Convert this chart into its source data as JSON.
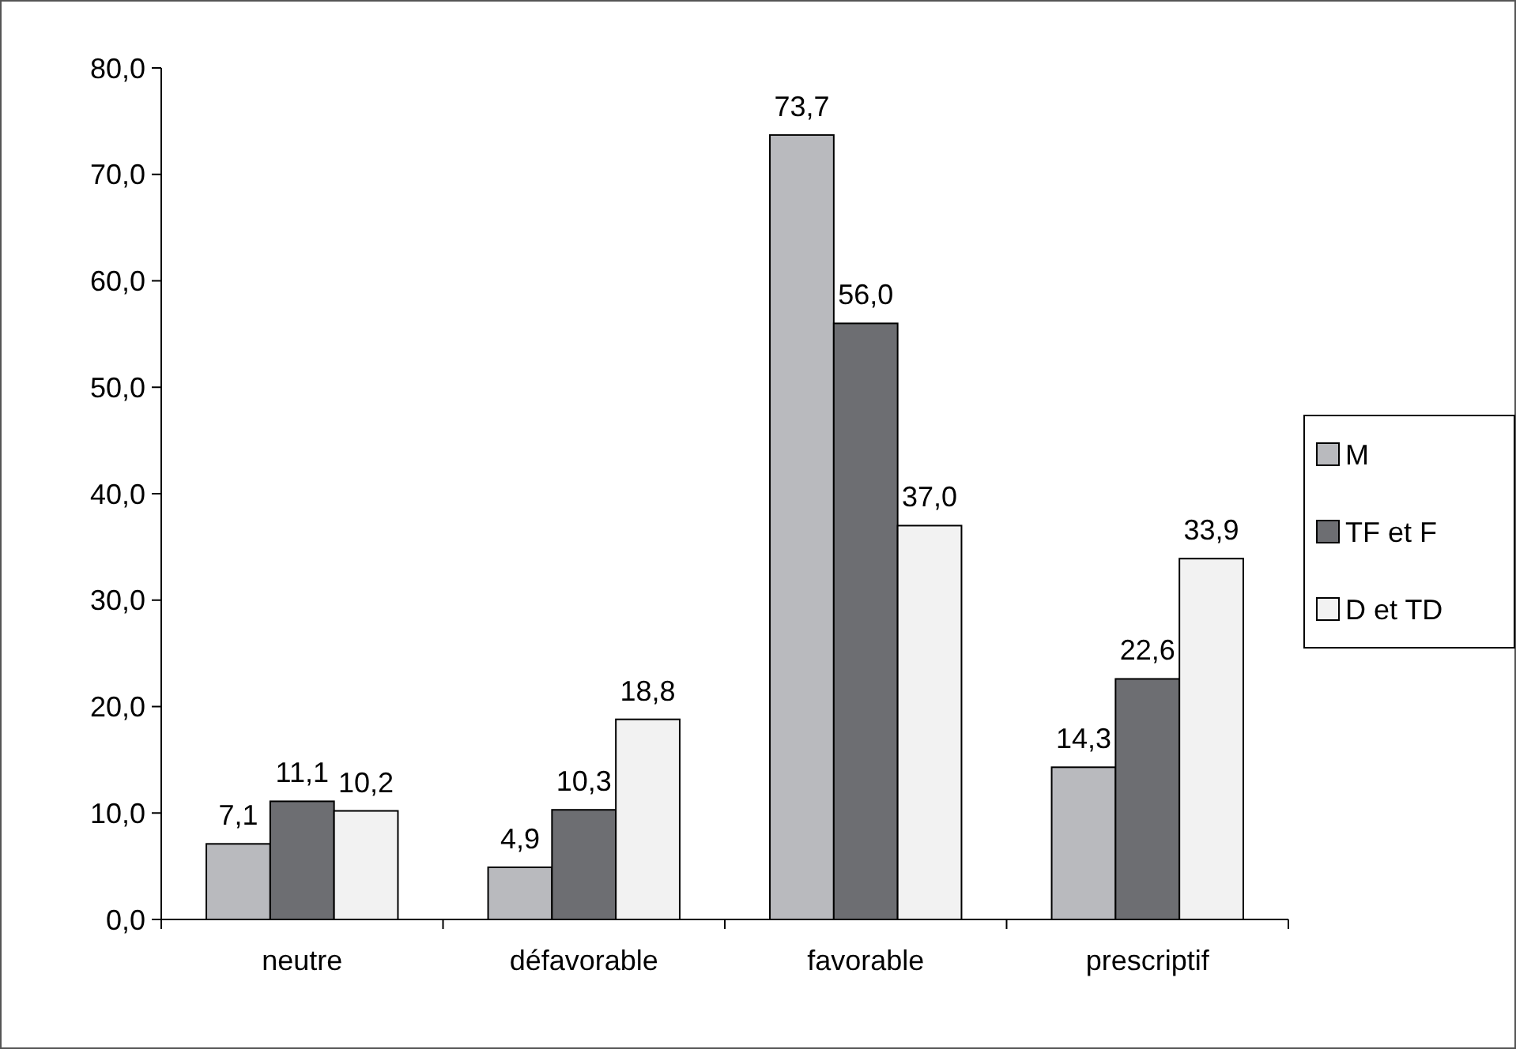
{
  "chart_data": {
    "type": "bar",
    "categories": [
      "neutre",
      "défavorable",
      "favorable",
      "prescriptif"
    ],
    "series": [
      {
        "name": "M",
        "color": "#b9babe",
        "values": [
          7.1,
          4.9,
          73.7,
          14.3
        ],
        "value_labels": [
          "7,1",
          "4,9",
          "73,7",
          "14,3"
        ]
      },
      {
        "name": "TF et F",
        "color": "#6d6e72",
        "values": [
          11.1,
          10.3,
          56.0,
          22.6
        ],
        "value_labels": [
          "11,1",
          "10,3",
          "56,0",
          "22,6"
        ]
      },
      {
        "name": "D et TD",
        "color": "#f2f2f2",
        "values": [
          10.2,
          18.8,
          37.0,
          33.9
        ],
        "value_labels": [
          "10,2",
          "18,8",
          "37,0",
          "33,9"
        ]
      }
    ],
    "ylim": [
      0,
      80
    ],
    "yticks": [
      {
        "value": 0,
        "label": "0,0"
      },
      {
        "value": 10,
        "label": "10,0"
      },
      {
        "value": 20,
        "label": "20,0"
      },
      {
        "value": 30,
        "label": "30,0"
      },
      {
        "value": 40,
        "label": "40,0"
      },
      {
        "value": 50,
        "label": "50,0"
      },
      {
        "value": 60,
        "label": "60,0"
      },
      {
        "value": 70,
        "label": "70,0"
      },
      {
        "value": 80,
        "label": "80,0"
      }
    ],
    "grid": false,
    "legend": "right"
  }
}
